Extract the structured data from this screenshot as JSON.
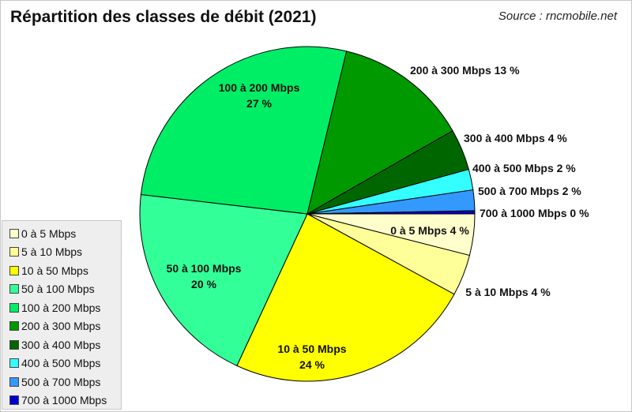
{
  "title": "Répartition des classes de débit (2021)",
  "source": "Source : rncmobile.net",
  "chart_data": {
    "type": "pie",
    "title": "Répartition des classes de débit (2021)",
    "legend_position": "bottom-left",
    "start_angle_deg": 90,
    "direction": "clockwise",
    "slices": [
      {
        "label": "0 à 5 Mbps",
        "value": 4,
        "display": "0 à 5 Mbps 4 %",
        "color": "#ffffcc"
      },
      {
        "label": "5 à 10 Mbps",
        "value": 4,
        "display": "5 à 10 Mbps 4 %",
        "color": "#ffff99"
      },
      {
        "label": "10 à 50 Mbps",
        "value": 24,
        "display": "10 à 50 Mbps",
        "display2": "24 %",
        "color": "#ffff00"
      },
      {
        "label": "50 à 100 Mbps",
        "value": 20,
        "display": "50 à 100 Mbps",
        "display2": "20 %",
        "color": "#33ff99"
      },
      {
        "label": "100 à 200 Mbps",
        "value": 27,
        "display": "100 à 200 Mbps",
        "display2": "27 %",
        "color": "#00ee66"
      },
      {
        "label": "200 à 300 Mbps",
        "value": 13,
        "display": "200 à 300 Mbps 13 %",
        "color": "#009900"
      },
      {
        "label": "300 à 400 Mbps",
        "value": 4,
        "display": "300 à 400 Mbps 4 %",
        "color": "#006600"
      },
      {
        "label": "400 à 500 Mbps",
        "value": 2,
        "display": "400 à 500 Mbps 2 %",
        "color": "#33ffff"
      },
      {
        "label": "500 à 700 Mbps",
        "value": 2,
        "display": "500 à 700 Mbps 2 %",
        "color": "#3399ff"
      },
      {
        "label": "700 à 1000 Mbps",
        "value": 0.3,
        "display": "700 à 1000 Mbps 0 %",
        "color": "#0000cc"
      }
    ]
  }
}
